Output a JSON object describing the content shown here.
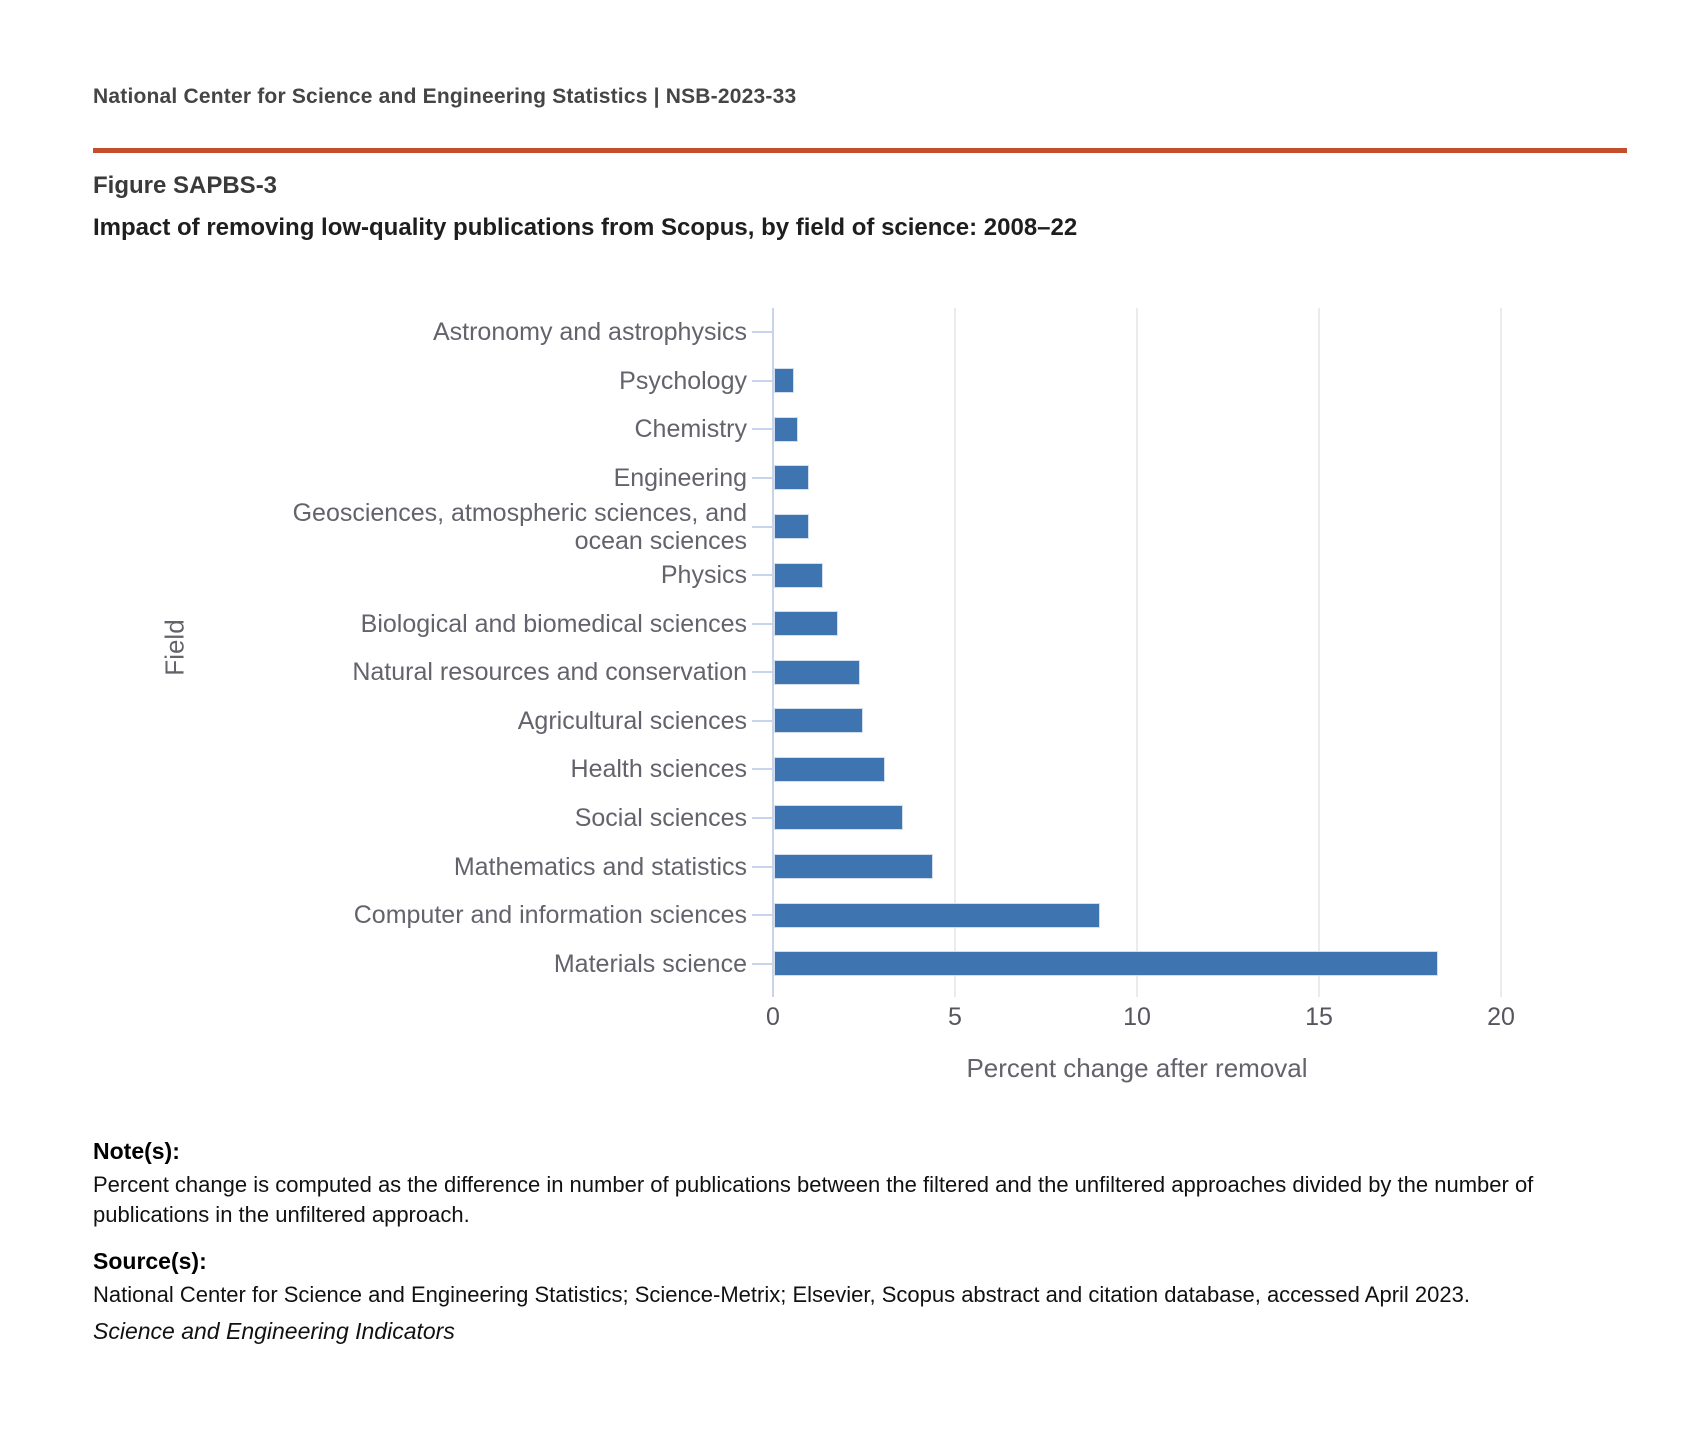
{
  "header": {
    "text": "National Center for Science and Engineering Statistics  |  NSB-2023-33"
  },
  "figure": {
    "number": "Figure SAPBS-3",
    "title": "Impact of removing low-quality publications from Scopus, by field of science: 2008–22"
  },
  "chart_data": {
    "type": "bar",
    "orientation": "horizontal",
    "title": "Impact of removing low-quality publications from Scopus, by field of science: 2008–22",
    "categories": [
      "Astronomy and astrophysics",
      "Psychology",
      "Chemistry",
      "Engineering",
      "Geosciences, atmospheric sciences, and ocean sciences",
      "Physics",
      "Biological and biomedical sciences",
      "Natural resources and conservation",
      "Agricultural sciences",
      "Health sciences",
      "Social sciences",
      "Mathematics and statistics",
      "Computer and information sciences",
      "Materials science"
    ],
    "values": [
      0,
      0.5,
      0.6,
      0.9,
      0.9,
      1.3,
      1.7,
      2.3,
      2.4,
      3.0,
      3.5,
      4.3,
      8.9,
      18.2
    ],
    "xlabel": "Percent change after removal",
    "ylabel": "Field",
    "xlim": [
      0,
      20
    ],
    "xticks": [
      0,
      5,
      10,
      15,
      20
    ],
    "grid": true,
    "legend": false,
    "bar_color": "#3E74B0"
  },
  "colors": {
    "accent_rule": "#C44D2B",
    "bar": "#3E74B0",
    "gridline": "#EAEAEF",
    "axis_line": "#C9D4E9"
  },
  "notes": {
    "label": "Note(s):",
    "text": "Percent change is computed as the difference in number of publications between the filtered and the unfiltered approaches divided by the number of publications in the unfiltered approach."
  },
  "sources": {
    "label": "Source(s):",
    "text": "National Center for Science and Engineering Statistics; Science-Metrix; Elsevier, Scopus abstract and citation database, accessed April 2023."
  },
  "footer": {
    "publication": "Science and Engineering Indicators"
  }
}
